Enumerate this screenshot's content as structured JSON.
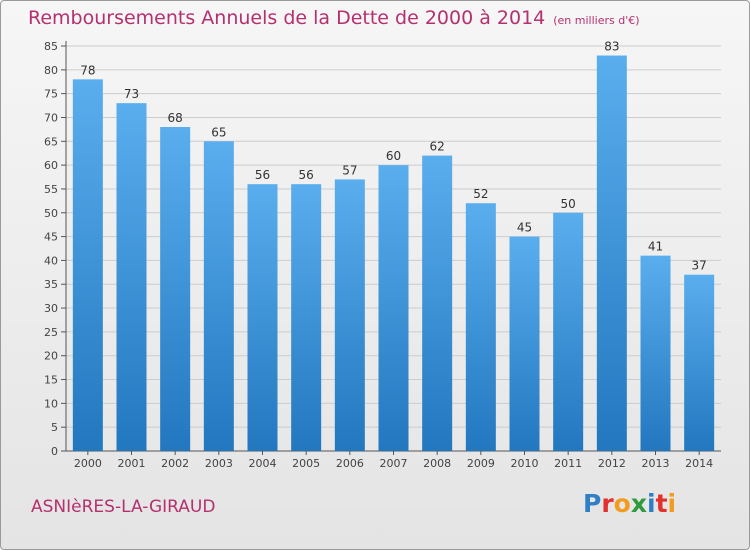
{
  "title": "Remboursements Annuels de la Dette de 2000 à 2014",
  "unit": "(en milliers d'€)",
  "town": "ASNIèRES-LA-GIRAUD",
  "logo": {
    "text": "Proxiti",
    "letters": [
      {
        "ch": "P",
        "color": "#2f7fc6"
      },
      {
        "ch": "r",
        "color": "#e2312d"
      },
      {
        "ch": "o",
        "color": "#f39b1f"
      },
      {
        "ch": "x",
        "color": "#2f9a3e"
      },
      {
        "ch": "i",
        "color": "#2f7fc6"
      },
      {
        "ch": "t",
        "color": "#e2312d"
      },
      {
        "ch": "i",
        "color": "#f39b1f"
      }
    ]
  },
  "colors": {
    "title": "#b5306f",
    "bar_top": "#5aaeee",
    "bar_bottom": "#2277bf",
    "grid": "#cccccc"
  },
  "chart_data": {
    "type": "bar",
    "categories": [
      "2000",
      "2001",
      "2002",
      "2003",
      "2004",
      "2005",
      "2006",
      "2007",
      "2008",
      "2009",
      "2010",
      "2011",
      "2012",
      "2013",
      "2014"
    ],
    "values": [
      78,
      73,
      68,
      65,
      56,
      56,
      57,
      60,
      62,
      52,
      45,
      50,
      83,
      41,
      37
    ],
    "ylim": [
      0,
      85
    ],
    "yticks": [
      0,
      5,
      10,
      15,
      20,
      25,
      30,
      35,
      40,
      45,
      50,
      55,
      60,
      65,
      70,
      75,
      80,
      85
    ],
    "grid": true,
    "data_labels": true
  }
}
